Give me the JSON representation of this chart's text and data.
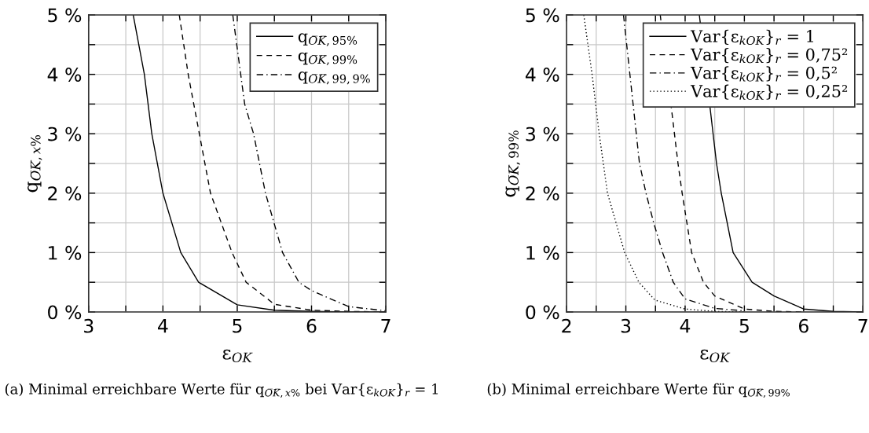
{
  "chart_data": [
    {
      "type": "line",
      "xlabel": "ε$_{OK}$",
      "ylabel": "q$_{O̅K̅,x%}$",
      "xlim": [
        3,
        7
      ],
      "xticks": [
        3,
        {
          "value": 3.5,
          "label": null
        },
        4,
        {
          "value": 4.5,
          "label": null
        },
        5,
        {
          "value": 5.5,
          "label": null
        },
        6,
        {
          "value": 6.5,
          "label": null
        },
        7
      ],
      "ylim": [
        0,
        5
      ],
      "yticks": [
        {
          "value": 0,
          "label": "0 %"
        },
        {
          "value": 0.5,
          "label": null
        },
        {
          "value": 1,
          "label": "1 %"
        },
        {
          "value": 1.5,
          "label": null
        },
        {
          "value": 2,
          "label": "2 %"
        },
        {
          "value": 2.5,
          "label": null
        },
        {
          "value": 3,
          "label": "3 %"
        },
        {
          "value": 3.5,
          "label": null
        },
        {
          "value": 4,
          "label": "4 %"
        },
        {
          "value": 4.5,
          "label": null
        },
        {
          "value": 5,
          "label": "5 %"
        }
      ],
      "grid": true,
      "legend": "top right",
      "marker": "none",
      "series": [
        {
          "name": "q$_{O̅K̅,95%}$",
          "color": "#000000",
          "line_style": "solid",
          "x": [
            3.6,
            3.75,
            3.85,
            4.0,
            4.24,
            4.48,
            5.0,
            5.5,
            6.0,
            6.5,
            7.0
          ],
          "values": [
            5,
            4,
            3,
            2,
            1,
            0.5,
            0.12,
            0.03,
            0.01,
            0,
            0
          ]
        },
        {
          "name": "q$_{O̅K̅,99%}$",
          "color": "#000000",
          "line_style": "dashed",
          "x": [
            4.22,
            4.34,
            4.49,
            4.64,
            4.93,
            5.12,
            5.5,
            6.0,
            6.5,
            7.0
          ],
          "values": [
            5,
            4,
            3,
            2,
            1,
            0.5,
            0.13,
            0.03,
            0.01,
            0
          ]
        },
        {
          "name": "q$_{O̅K̅,99,9%}$",
          "color": "#000000",
          "line_style": "dashdot",
          "x": [
            4.94,
            5.1,
            5.22,
            5.38,
            5.61,
            5.83,
            6.0,
            6.5,
            7.0
          ],
          "values": [
            5,
            3.5,
            3,
            2,
            1,
            0.5,
            0.36,
            0.09,
            0.02
          ]
        }
      ],
      "annotations": [
        "(a) Minimal erreichbare Werte für q$_{O̅K̅,x%}$ bei Var{ε$_{kOK}$}$_{r}$ = 1"
      ]
    },
    {
      "type": "line",
      "xlabel": "ε$_{OK}$",
      "ylabel": "q$_{O̅K̅,99%}$",
      "xlim": [
        2,
        7
      ],
      "xticks": [
        2,
        {
          "value": 2.5,
          "label": null
        },
        3,
        {
          "value": 3.5,
          "label": null
        },
        4,
        {
          "value": 4.5,
          "label": null
        },
        5,
        {
          "value": 5.5,
          "label": null
        },
        6,
        {
          "value": 6.5,
          "label": null
        },
        7
      ],
      "ylim": [
        0,
        5
      ],
      "yticks": [
        {
          "value": 0,
          "label": "0 %"
        },
        {
          "value": 0.5,
          "label": null
        },
        {
          "value": 1,
          "label": "1 %"
        },
        {
          "value": 1.5,
          "label": null
        },
        {
          "value": 2,
          "label": "2 %"
        },
        {
          "value": 2.5,
          "label": null
        },
        {
          "value": 3,
          "label": "3 %"
        },
        {
          "value": 3.5,
          "label": null
        },
        {
          "value": 4,
          "label": "4 %"
        },
        {
          "value": 4.5,
          "label": null
        },
        {
          "value": 5,
          "label": "5 %"
        }
      ],
      "grid": true,
      "legend": "top right",
      "marker": "none",
      "series": [
        {
          "name": "Var{ε$_{kOK}$}$_{r}$ = 1",
          "color": "#000000",
          "line_style": "solid",
          "x": [
            4.24,
            4.53,
            4.61,
            4.81,
            5.13,
            5.5,
            6.0,
            6.5,
            7.0
          ],
          "values": [
            5,
            2.5,
            2,
            1,
            0.5,
            0.27,
            0.05,
            0.01,
            0
          ]
        },
        {
          "name": "Var{ε$_{kOK}$}$_{r}$ = 0,75²",
          "color": "#000000",
          "line_style": "dashed",
          "x": [
            3.58,
            3.88,
            3.95,
            4.11,
            4.31,
            4.5,
            5.0,
            5.5,
            6.0
          ],
          "values": [
            5,
            2.5,
            2,
            1,
            0.5,
            0.27,
            0.05,
            0.01,
            0
          ]
        },
        {
          "name": "Var{ε$_{kOK}$}$_{r}$ = 0,5²",
          "color": "#000000",
          "line_style": "dashdot",
          "x": [
            2.96,
            3.23,
            3.34,
            3.47,
            3.62,
            3.8,
            4.0,
            4.5,
            5.0
          ],
          "values": [
            5,
            2.5,
            2,
            1.5,
            1,
            0.5,
            0.22,
            0.06,
            0.02
          ]
        },
        {
          "name": "Var{ε$_{kOK}$}$_{r}$ = 0,25²",
          "color": "#000000",
          "line_style": "dotted",
          "x": [
            2.29,
            2.43,
            2.55,
            2.69,
            2.98,
            3.22,
            3.49,
            4.0,
            4.5,
            5.0
          ],
          "values": [
            5,
            4,
            3,
            2,
            1,
            0.5,
            0.2,
            0.05,
            0.01,
            0
          ]
        }
      ],
      "annotations": [
        "(b) Minimal erreichbare Werte für q$_{O̅K̅,99%}$"
      ]
    }
  ]
}
